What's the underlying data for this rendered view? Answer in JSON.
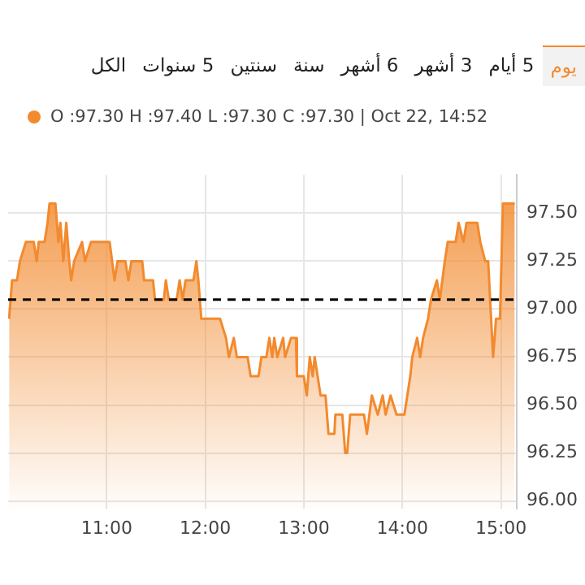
{
  "chart_data": {
    "type": "area",
    "subtitle": "O :97.30 H :97.40 L :97.30 C :97.30 | Oct 22, 14:52",
    "annotations": [
      "يوم",
      "5 أيام",
      "3 أشهر",
      "6 أشهر",
      "سنة",
      "سنتين",
      "5 سنوات",
      "الكل"
    ],
    "series": [
      {
        "color": "#f28a2e",
        "x": [
          10.01,
          10.04,
          10.09,
          10.12,
          10.18,
          10.26,
          10.29,
          10.31,
          10.37,
          10.4,
          10.42,
          10.48,
          10.51,
          10.53,
          10.56,
          10.59,
          10.62,
          10.64,
          10.67,
          10.75,
          10.78,
          10.84,
          11.03,
          11.08,
          11.11,
          11.19,
          11.22,
          11.25,
          11.36,
          11.38,
          11.47,
          11.49,
          11.58,
          11.6,
          11.63,
          11.71,
          11.74,
          11.77,
          11.8,
          11.88,
          11.91,
          11.93,
          11.96,
          11.99,
          12.15,
          12.21,
          12.24,
          12.29,
          12.32,
          12.43,
          12.46,
          12.54,
          12.57,
          12.62,
          12.65,
          12.68,
          12.7,
          12.73,
          12.79,
          12.81,
          12.87,
          12.92,
          12.93,
          13.0,
          13.03,
          13.06,
          13.09,
          13.11,
          13.17,
          13.22,
          13.25,
          13.31,
          13.32,
          13.39,
          13.42,
          13.44,
          13.47,
          13.61,
          13.64,
          13.69,
          13.75,
          13.8,
          13.83,
          13.88,
          13.94,
          14.02,
          14.05,
          14.08,
          14.1,
          14.15,
          14.18,
          14.21,
          14.26,
          14.29,
          14.35,
          14.38,
          14.43,
          14.46,
          14.54,
          14.57,
          14.62,
          14.65,
          14.76,
          14.79,
          14.84,
          14.87,
          14.92,
          14.95,
          14.99,
          15.02,
          15.14
        ],
        "values": [
          96.95,
          97.15,
          97.15,
          97.25,
          97.35,
          97.35,
          97.25,
          97.35,
          97.35,
          97.45,
          97.55,
          97.55,
          97.35,
          97.45,
          97.25,
          97.45,
          97.25,
          97.15,
          97.25,
          97.35,
          97.25,
          97.35,
          97.35,
          97.15,
          97.25,
          97.25,
          97.15,
          97.25,
          97.25,
          97.15,
          97.15,
          97.05,
          97.05,
          97.15,
          97.05,
          97.05,
          97.15,
          97.05,
          97.15,
          97.15,
          97.25,
          97.15,
          96.95,
          96.95,
          96.95,
          96.85,
          96.75,
          96.85,
          96.75,
          96.75,
          96.65,
          96.65,
          96.75,
          96.75,
          96.85,
          96.75,
          96.85,
          96.75,
          96.85,
          96.75,
          96.85,
          96.85,
          96.65,
          96.65,
          96.55,
          96.75,
          96.65,
          96.75,
          96.55,
          96.55,
          96.35,
          96.35,
          96.45,
          96.45,
          96.25,
          96.25,
          96.45,
          96.45,
          96.35,
          96.55,
          96.45,
          96.55,
          96.45,
          96.55,
          96.45,
          96.45,
          96.55,
          96.65,
          96.75,
          96.85,
          96.75,
          96.85,
          96.95,
          97.05,
          97.15,
          97.05,
          97.25,
          97.35,
          97.35,
          97.45,
          97.35,
          97.45,
          97.45,
          97.35,
          97.25,
          97.25,
          96.75,
          96.95,
          96.95,
          97.55,
          97.55
        ]
      }
    ],
    "xlim": [
      10,
      15.16
    ],
    "xticks": [
      {
        "value": 11,
        "label": "11:00"
      },
      {
        "value": 12,
        "label": "12:00"
      },
      {
        "value": 13,
        "label": "13:00"
      },
      {
        "value": 14,
        "label": "14:00"
      },
      {
        "value": 15,
        "label": "15:00"
      }
    ],
    "ylim": [
      95.96,
      97.7
    ],
    "yticks": [
      {
        "value": 96,
        "label": "96.00"
      },
      {
        "value": 96.25,
        "label": "96.25"
      },
      {
        "value": 96.5,
        "label": "96.50"
      },
      {
        "value": 96.75,
        "label": "96.75"
      },
      {
        "value": 97,
        "label": "97.00"
      },
      {
        "value": 97.25,
        "label": "97.25"
      },
      {
        "value": 97.5,
        "label": "97.50"
      }
    ],
    "ref_lines": [
      {
        "axis": "y",
        "value": 97.05,
        "color": "#000000",
        "line_style": "dashed"
      }
    ],
    "grid": true,
    "legend": false,
    "marker": "none",
    "line_style": "solid"
  }
}
